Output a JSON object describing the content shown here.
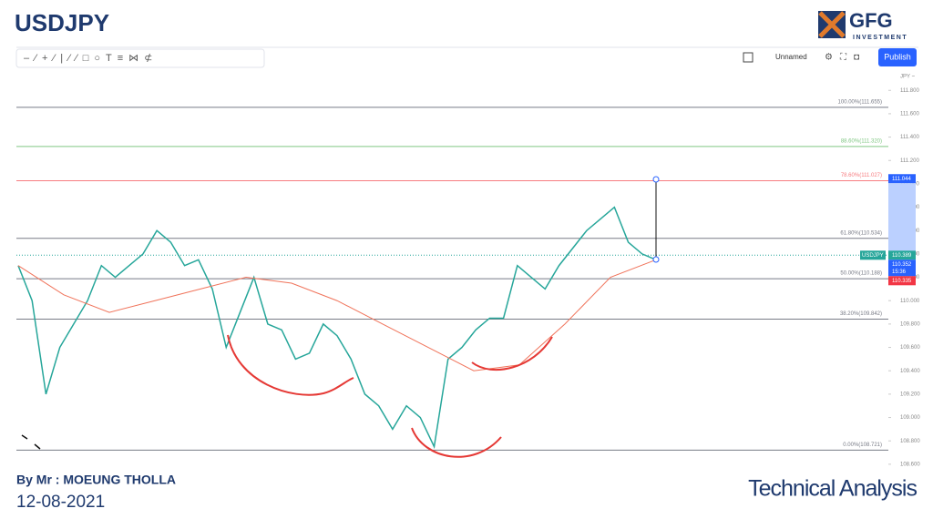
{
  "header": {
    "title": "USDJPY",
    "logo": "GFG",
    "logo_sub": "INVESTMENT"
  },
  "toolbar": {
    "layout_name": "Unnamed",
    "publish": "Publish"
  },
  "chart_data": {
    "type": "line",
    "currency": "JPY ~",
    "series": [
      {
        "name": "USDJPY",
        "color": "#26a69a",
        "values": [
          110.3,
          110.0,
          109.2,
          109.6,
          109.8,
          110.0,
          110.3,
          110.2,
          110.3,
          110.4,
          110.6,
          110.5,
          110.3,
          110.35,
          110.1,
          109.6,
          109.9,
          110.2,
          109.8,
          109.75,
          109.5,
          109.55,
          109.8,
          109.7,
          109.5,
          109.2,
          109.1,
          108.9,
          109.1,
          109.0,
          108.75,
          109.5,
          109.6,
          109.75,
          109.85,
          109.85,
          110.3,
          110.2,
          110.1,
          110.3,
          110.45,
          110.6,
          110.7,
          110.8,
          110.5,
          110.4,
          110.35
        ]
      },
      {
        "name": "MA",
        "color": "#f0735a",
        "values": [
          110.3,
          110.05,
          109.9,
          110.0,
          110.1,
          110.2,
          110.15,
          110.0,
          109.8,
          109.6,
          109.4,
          109.45,
          109.8,
          110.2,
          110.35
        ]
      }
    ],
    "ylim": [
      108.56,
      111.95
    ],
    "yticks": [
      {
        "value": 108.6,
        "label": "108.600"
      },
      {
        "value": 108.8,
        "label": "108.800"
      },
      {
        "value": 109.0,
        "label": "109.000"
      },
      {
        "value": 109.2,
        "label": "109.200"
      },
      {
        "value": 109.4,
        "label": "109.400"
      },
      {
        "value": 109.6,
        "label": "109.600"
      },
      {
        "value": 109.8,
        "label": "109.800"
      },
      {
        "value": 110.0,
        "label": "110.000"
      },
      {
        "value": 110.2,
        "label": "110.200"
      },
      {
        "value": 110.4,
        "label": "110.400"
      },
      {
        "value": 110.6,
        "label": "110.600"
      },
      {
        "value": 110.8,
        "label": "110.800"
      },
      {
        "value": 111.0,
        "label": "111.000"
      },
      {
        "value": 111.2,
        "label": "111.200"
      },
      {
        "value": 111.4,
        "label": "111.400"
      },
      {
        "value": 111.6,
        "label": "111.600"
      },
      {
        "value": 111.8,
        "label": "111.800"
      }
    ],
    "fib_levels": [
      {
        "value": 111.655,
        "label": "100.00%(111.655)",
        "color": "#787b86"
      },
      {
        "value": 111.32,
        "label": "88.60%(111.320)",
        "color": "#81c784"
      },
      {
        "value": 111.027,
        "label": "78.60%(111.027)",
        "color": "#f77c80"
      },
      {
        "value": 110.534,
        "label": "61.80%(110.534)",
        "color": "#787b86"
      },
      {
        "value": 110.188,
        "label": "50.00%(110.188)",
        "color": "#787b86"
      },
      {
        "value": 109.842,
        "label": "38.20%(109.842)",
        "color": "#787b86"
      },
      {
        "value": 108.721,
        "label": "0.00%(108.721)",
        "color": "#787b86"
      }
    ],
    "price_tags": [
      {
        "label": "USDJPY",
        "value": 110.389,
        "color": "#26a69a"
      },
      {
        "label": "15:36",
        "value": 110.352,
        "color": "#2962ff"
      },
      {
        "label": "",
        "value": 110.335,
        "color": "#f23645"
      }
    ],
    "target_tag": {
      "value": 111.044,
      "color": "#2962ff"
    }
  },
  "footer": {
    "author": "By Mr : MOEUNG THOLLA",
    "date": "12-08-2021",
    "caption": "Technical Analysis"
  }
}
